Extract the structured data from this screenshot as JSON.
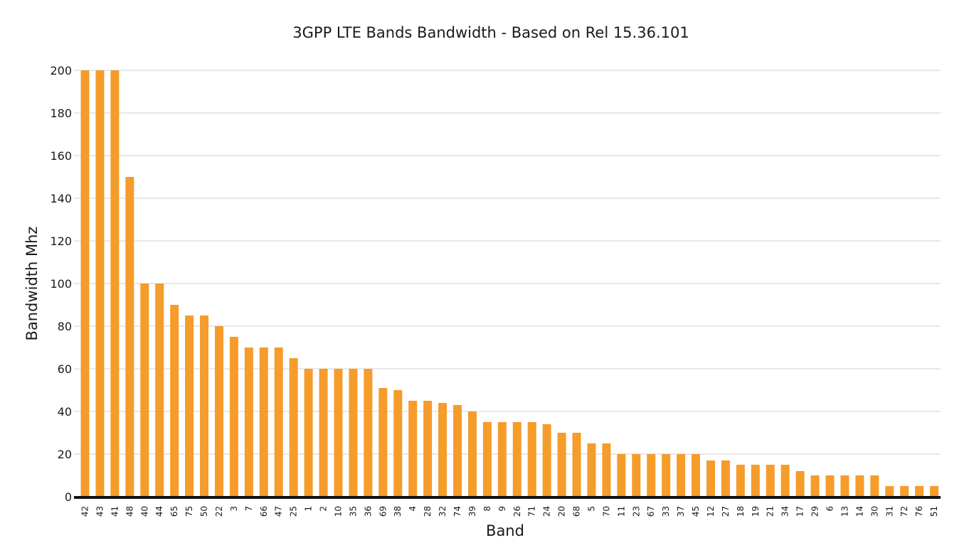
{
  "chart_data": {
    "type": "bar",
    "title": "3GPP LTE Bands Bandwidth - Based on Rel 15.36.101",
    "xlabel": "Band",
    "ylabel": "Bandwidth Mhz",
    "ylim": [
      0,
      200
    ],
    "yticks": [
      0,
      20,
      40,
      60,
      80,
      100,
      120,
      140,
      160,
      180,
      200
    ],
    "grid": true,
    "legend": "none",
    "bar_color": "#f59c2b",
    "categories": [
      "42",
      "43",
      "41",
      "48",
      "40",
      "44",
      "65",
      "75",
      "50",
      "22",
      "3",
      "7",
      "66",
      "47",
      "25",
      "1",
      "2",
      "10",
      "35",
      "36",
      "69",
      "38",
      "4",
      "28",
      "32",
      "74",
      "39",
      "8",
      "9",
      "26",
      "71",
      "24",
      "20",
      "68",
      "5",
      "70",
      "11",
      "23",
      "67",
      "33",
      "37",
      "45",
      "12",
      "27",
      "18",
      "19",
      "21",
      "34",
      "17",
      "29",
      "6",
      "13",
      "14",
      "30",
      "31",
      "72",
      "76",
      "51"
    ],
    "values": [
      200,
      200,
      200,
      150,
      100,
      100,
      90,
      85,
      85,
      80,
      75,
      70,
      70,
      70,
      65,
      60,
      60,
      60,
      60,
      60,
      51,
      50,
      45,
      45,
      44,
      43,
      40,
      35,
      35,
      35,
      35,
      34,
      30,
      30,
      25,
      25,
      20,
      20,
      20,
      20,
      20,
      20,
      17,
      17,
      15,
      15,
      15,
      15,
      12,
      10,
      10,
      10,
      10,
      10,
      5,
      5,
      5,
      5
    ]
  }
}
